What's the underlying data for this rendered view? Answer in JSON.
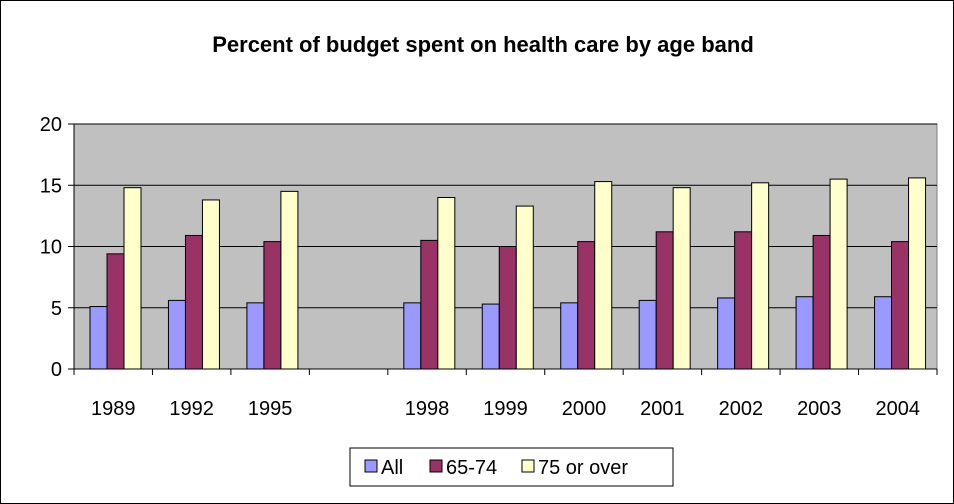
{
  "chart_data": {
    "type": "bar",
    "title": "Percent of budget spent on health care by age band",
    "xlabel": "",
    "ylabel": "",
    "ylim": [
      0,
      20
    ],
    "yticks": [
      "0",
      "5",
      "10",
      "15",
      "20"
    ],
    "grid": true,
    "legend_position": "bottom",
    "categories": [
      "1989",
      "1992",
      "1995",
      "",
      "1998",
      "1999",
      "2000",
      "2001",
      "2002",
      "2003",
      "2004"
    ],
    "series": [
      {
        "name": "All",
        "color": "#9999ff",
        "values": [
          5.1,
          5.6,
          5.4,
          null,
          5.4,
          5.3,
          5.4,
          5.6,
          5.8,
          5.9,
          5.9
        ]
      },
      {
        "name": "65-74",
        "color": "#993366",
        "values": [
          9.4,
          10.9,
          10.4,
          null,
          10.5,
          10.0,
          10.4,
          11.2,
          11.2,
          10.9,
          10.4
        ]
      },
      {
        "name": "75 or over",
        "color": "#ffffcc",
        "values": [
          14.8,
          13.8,
          14.5,
          null,
          14.0,
          13.3,
          15.3,
          14.8,
          15.2,
          15.5,
          15.6
        ]
      }
    ]
  }
}
